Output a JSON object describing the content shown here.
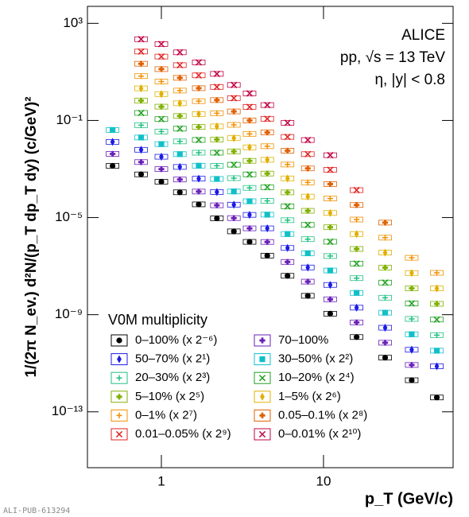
{
  "chart_data": {
    "type": "scatter",
    "ylabel": "1/(2π N_ev.) d²N/(p_T dp_T dy) (c/GeV)²",
    "xlabel": "p_T (GeV/c)",
    "annotations": [
      "ALICE",
      "pp, √s = 13 TeV",
      "η, |y| < 0.8"
    ],
    "legend_title": "V0M multiplicity",
    "footer": "ALI-PUB-613294",
    "xscale": "log",
    "yscale": "log",
    "xlim": [
      0.35,
      63
    ],
    "ylim": [
      5e-16,
      5000
    ],
    "xticks": [
      1,
      10
    ],
    "yticks": [
      {
        "value": 1000,
        "label": "10³"
      },
      {
        "value": 0.1,
        "label": "10⁻¹"
      },
      {
        "value": 1e-05,
        "label": "10⁻⁵"
      },
      {
        "value": 1e-09,
        "label": "10⁻⁹"
      },
      {
        "value": 1e-13,
        "label": "10⁻¹³"
      }
    ],
    "x": [
      0.5,
      0.75,
      1.0,
      1.3,
      1.7,
      2.2,
      2.8,
      3.5,
      4.5,
      6,
      8,
      11,
      16,
      24,
      35,
      50
    ],
    "series": [
      {
        "name": "0–100% (x 2⁻⁶)",
        "color": "#000000",
        "marker": "circle",
        "values": [
          0.00135,
          0.0006,
          0.0003,
          0.00011,
          3.5e-05,
          9.3e-06,
          2.7e-06,
          1e-06,
          2.7e-07,
          4e-08,
          6e-09,
          1.1e-09,
          1.2e-10,
          1.7e-11,
          2e-12,
          3.9e-13
        ]
      },
      {
        "name": "70–100%",
        "color": "#6a1fb8",
        "marker": "cross",
        "values": [
          0.0042,
          0.00193,
          0.00099,
          0.00037,
          0.000118,
          3.2e-05,
          9.5e-06,
          3.6e-06,
          9.9e-07,
          1.49e-07,
          2.3e-08,
          4.3e-09,
          4.8e-10,
          7e-11,
          8.5e-12,
          null
        ]
      },
      {
        "name": "50–70% (x 2¹)",
        "color": "#1a1ae6",
        "marker": "diamond",
        "values": [
          0.0131,
          0.0062,
          0.0032,
          0.00122,
          0.0004,
          0.000113,
          3.4e-05,
          1.29e-05,
          3.6e-06,
          5.6e-07,
          8.8e-08,
          1.68e-08,
          1.95e-09,
          2.9e-10,
          3.6e-11,
          7.5e-12
        ]
      },
      {
        "name": "30–50% (x 2²)",
        "color": "#10c0c8",
        "marker": "square",
        "values": [
          0.0406,
          0.0199,
          0.0106,
          0.0041,
          0.00137,
          0.00039,
          0.000119,
          4.7e-05,
          1.32e-05,
          2.1e-06,
          3.4e-07,
          6.6e-08,
          7.9e-09,
          1.21e-09,
          1.56e-10,
          3.3e-11
        ]
      },
      {
        "name": "20–30% (x 2³)",
        "color": "#20c080",
        "marker": "plus",
        "values": [
          null,
          0.064,
          0.035,
          0.0137,
          0.0047,
          0.00136,
          0.00042,
          0.000167,
          4.9e-05,
          7.8e-06,
          1.29e-06,
          2.6e-07,
          3.2e-08,
          5e-09,
          6.7e-10,
          1.44e-10
        ]
      },
      {
        "name": "10–20% (x 2⁴)",
        "color": "#20a020",
        "marker": "x",
        "values": [
          null,
          0.204,
          0.114,
          0.046,
          0.0158,
          0.0047,
          0.0015,
          0.0006,
          0.000178,
          2.9e-05,
          5e-06,
          1.01e-06,
          1.27e-07,
          2.1e-08,
          2.9e-09,
          6.3e-10
        ]
      },
      {
        "name": "5–10% (x 2⁵)",
        "color": "#80b000",
        "marker": "cross",
        "values": [
          null,
          0.655,
          0.37,
          0.153,
          0.054,
          0.0164,
          0.0053,
          0.00217,
          0.00065,
          0.000109,
          1.9e-05,
          4e-06,
          5.1e-07,
          8.7e-08,
          1.22e-08,
          2.8e-09
        ]
      },
      {
        "name": "1–5% (x 2⁶)",
        "color": "#e0b000",
        "marker": "diamond",
        "values": [
          null,
          2.1,
          1.22,
          0.51,
          0.184,
          0.057,
          0.0187,
          0.0078,
          0.0024,
          0.00041,
          7.3e-05,
          1.55e-05,
          2.1e-06,
          3.6e-07,
          5.2e-08,
          1.21e-08
        ]
      },
      {
        "name": "0–1% (x 2⁷)",
        "color": "#f09000",
        "marker": "plus",
        "values": [
          null,
          6.7,
          4.0,
          1.7,
          0.625,
          0.199,
          0.066,
          0.028,
          0.0087,
          0.00153,
          0.00028,
          6.1e-05,
          8.3e-06,
          1.49e-06,
          2.2e-07,
          5.3e-08
        ]
      },
      {
        "name": "0.05–0.1% (x 2⁸)",
        "color": "#e06000",
        "marker": "cross",
        "values": [
          null,
          21.6,
          13,
          5.7,
          2.13,
          0.69,
          0.235,
          0.1,
          0.032,
          0.0057,
          0.00106,
          0.00024,
          3.3e-05,
          6.2e-06,
          null,
          null
        ]
      },
      {
        "name": "0.01–0.05% (x 2⁹)",
        "color": "#e02020",
        "marker": "x",
        "values": [
          null,
          69,
          42.7,
          19,
          7.2,
          2.4,
          0.83,
          0.36,
          0.117,
          0.021,
          0.0041,
          0.00093,
          0.000135,
          null,
          null,
          null
        ]
      },
      {
        "name": "0–0.01% (x 2¹⁰)",
        "color": "#c00040",
        "marker": "x",
        "values": [
          null,
          222,
          140,
          64,
          24.7,
          8.3,
          2.9,
          1.3,
          0.43,
          0.08,
          0.0156,
          0.0037,
          null,
          null,
          null,
          null
        ]
      }
    ]
  }
}
